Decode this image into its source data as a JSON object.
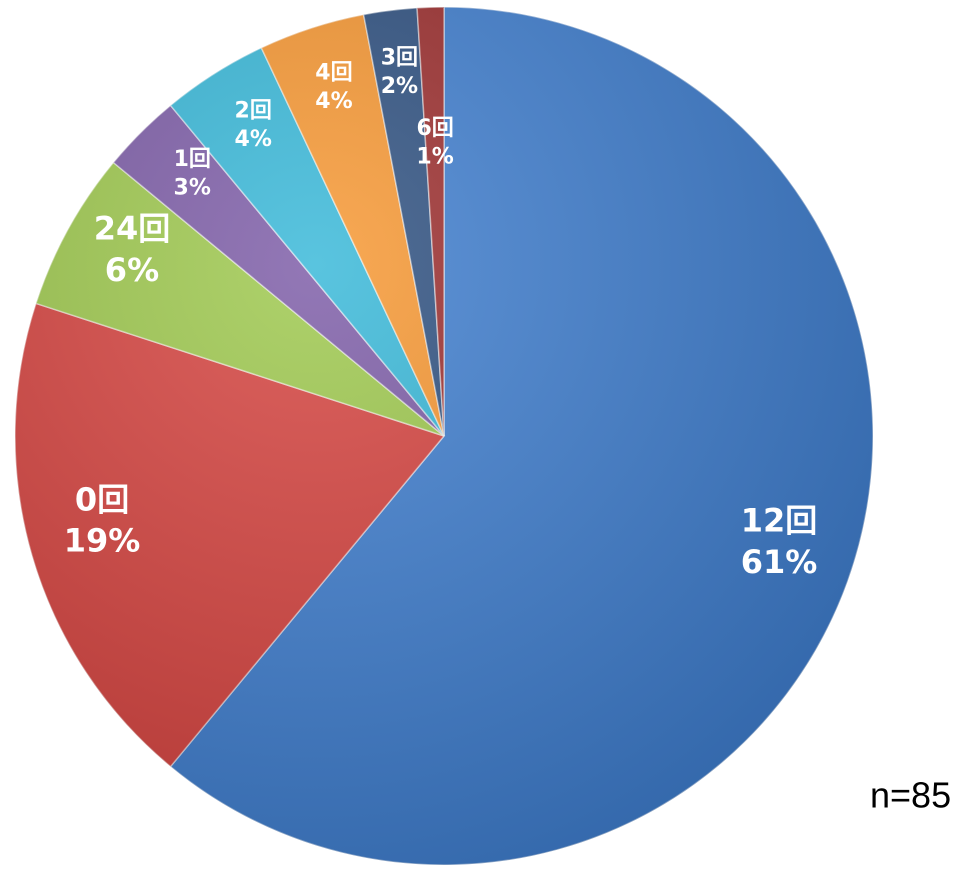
{
  "chart_data": {
    "type": "pie",
    "categories": [
      "12回",
      "0回",
      "24回",
      "1回",
      "2回",
      "4回",
      "3回",
      "6回"
    ],
    "values": [
      61,
      19,
      6,
      3,
      4,
      4,
      2,
      1
    ],
    "value_labels": [
      "61%",
      "19%",
      "6%",
      "3%",
      "4%",
      "4%",
      "2%",
      "1%"
    ],
    "colors": [
      "#3d7dcf",
      "#d6413d",
      "#9dc84b",
      "#7b5aa6",
      "#35b7d8",
      "#f7962f",
      "#2b4e7f",
      "#9b2b2b"
    ],
    "note": "n=85"
  }
}
